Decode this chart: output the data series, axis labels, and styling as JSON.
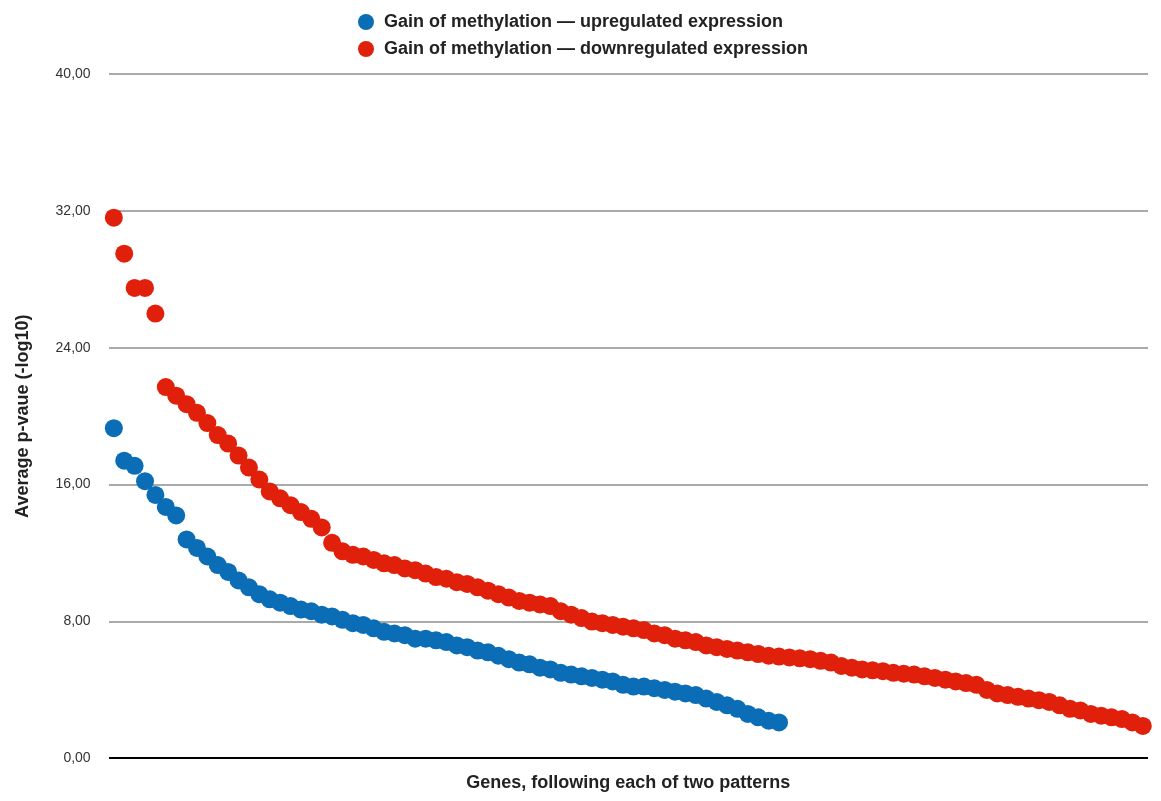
{
  "chart_data": {
    "type": "scatter",
    "xlabel": "Genes, following each of two patterns",
    "ylabel": "Average p-vaue (-log10)",
    "categories": [
      null,
      null,
      null,
      null,
      null,
      null,
      null,
      null,
      null,
      null,
      null,
      null,
      null,
      null,
      null,
      null,
      null,
      null,
      null,
      null,
      null,
      null,
      null,
      null,
      null,
      null,
      null,
      null,
      null,
      null,
      null,
      null,
      null,
      null,
      null,
      null,
      null,
      null,
      null,
      null,
      null,
      null,
      null,
      null,
      null,
      null,
      null,
      null,
      null,
      null,
      null,
      null,
      null,
      null,
      null,
      null,
      null,
      null,
      null,
      null,
      null,
      null,
      null,
      null,
      null,
      null,
      null,
      null,
      null,
      null,
      null,
      null,
      null,
      null,
      null,
      null,
      null,
      null,
      null,
      null,
      null,
      null,
      null,
      null,
      null,
      null,
      null,
      null,
      null,
      null,
      null,
      null,
      null,
      null,
      null,
      null,
      null,
      null,
      null,
      null
    ],
    "series": [
      {
        "name": "Gain of methylation — upregulated expression",
        "color": "#0a6db5",
        "values": [
          19.3,
          17.4,
          17.1,
          16.2,
          15.4,
          14.7,
          14.2,
          12.8,
          12.3,
          11.8,
          11.3,
          10.9,
          10.4,
          10.0,
          9.6,
          9.3,
          9.1,
          8.9,
          8.7,
          8.6,
          8.4,
          8.3,
          8.1,
          7.9,
          7.8,
          7.6,
          7.4,
          7.3,
          7.2,
          7.0,
          7.0,
          6.9,
          6.8,
          6.6,
          6.5,
          6.3,
          6.2,
          6.0,
          5.8,
          5.6,
          5.5,
          5.3,
          5.2,
          5.0,
          4.9,
          4.8,
          4.7,
          4.6,
          4.5,
          4.3,
          4.2,
          4.2,
          4.1,
          4.0,
          3.9,
          3.8,
          3.7,
          3.5,
          3.3,
          3.1,
          2.9,
          2.6,
          2.4,
          2.2,
          2.1,
          null,
          null,
          null,
          null,
          null,
          null,
          null,
          null,
          null,
          null,
          null,
          null,
          null,
          null,
          null,
          null,
          null,
          null,
          null,
          null,
          null,
          null,
          null,
          null,
          null,
          null,
          null,
          null,
          null,
          null,
          null,
          null,
          null,
          null,
          null
        ]
      },
      {
        "name": "Gain of methylation — downregulated expression",
        "color": "#e0200a",
        "values": [
          31.6,
          29.5,
          27.5,
          27.5,
          26.0,
          21.7,
          21.2,
          20.7,
          20.2,
          19.6,
          18.9,
          18.4,
          17.7,
          17.0,
          16.3,
          15.6,
          15.2,
          14.8,
          14.4,
          14.0,
          13.5,
          12.6,
          12.1,
          11.9,
          11.8,
          11.6,
          11.4,
          11.3,
          11.1,
          11.0,
          10.8,
          10.6,
          10.5,
          10.3,
          10.2,
          10.0,
          9.8,
          9.6,
          9.4,
          9.2,
          9.1,
          9.0,
          8.9,
          8.6,
          8.4,
          8.2,
          8.0,
          7.9,
          7.8,
          7.7,
          7.6,
          7.5,
          7.3,
          7.2,
          7.0,
          6.9,
          6.8,
          6.6,
          6.5,
          6.4,
          6.3,
          6.2,
          6.1,
          6.0,
          5.95,
          5.9,
          5.85,
          5.8,
          5.7,
          5.6,
          5.4,
          5.3,
          5.2,
          5.15,
          5.1,
          5.0,
          4.95,
          4.9,
          4.8,
          4.7,
          4.6,
          4.5,
          4.4,
          4.3,
          4.0,
          3.8,
          3.7,
          3.6,
          3.5,
          3.4,
          3.3,
          3.1,
          2.9,
          2.8,
          2.6,
          2.5,
          2.4,
          2.3,
          2.1,
          1.9
        ]
      }
    ],
    "ylim": [
      0,
      40
    ],
    "yticks": [
      {
        "value": 0,
        "label": "0,00"
      },
      {
        "value": 8,
        "label": "8,00"
      },
      {
        "value": 16,
        "label": "16,00"
      },
      {
        "value": 24,
        "label": "24,00"
      },
      {
        "value": 32,
        "label": "32,00"
      },
      {
        "value": 40,
        "label": "40,00"
      }
    ],
    "grid": "y",
    "legend": "top",
    "marker": "circle",
    "tick_labels": "y"
  }
}
